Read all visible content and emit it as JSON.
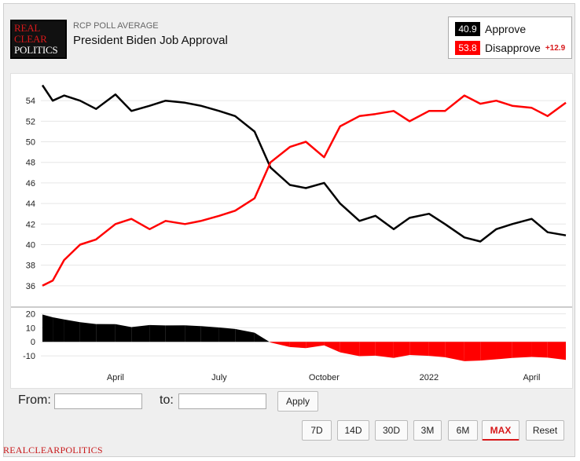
{
  "header": {
    "logo_lines": [
      "REAL",
      "CLEAR",
      "POLITICS"
    ],
    "kicker": "RCP POLL AVERAGE",
    "title": "President Biden Job Approval"
  },
  "legend": [
    {
      "value": "40.9",
      "name": "Approve",
      "color": "#000000"
    },
    {
      "value": "53.8",
      "name": "Disapprove",
      "color": "#ff0000",
      "spread": "+12.9"
    }
  ],
  "controls": {
    "from_label": "From:",
    "to_label": "to:",
    "apply_label": "Apply",
    "range_buttons": [
      "7D",
      "14D",
      "30D",
      "3M",
      "6M",
      "MAX",
      "Reset"
    ],
    "active_range": "MAX"
  },
  "footer": "REALCLEARPOLITICS",
  "chart_data": {
    "type": "line",
    "title": "President Biden Job Approval",
    "ylim": [
      34,
      56
    ],
    "yticks": [
      36,
      38,
      40,
      42,
      44,
      46,
      48,
      50,
      52,
      54
    ],
    "x": [
      "2021-01-27",
      "2021-02-05",
      "2021-02-15",
      "2021-03-01",
      "2021-03-15",
      "2021-04-01",
      "2021-04-15",
      "2021-05-01",
      "2021-05-15",
      "2021-06-01",
      "2021-06-15",
      "2021-07-01",
      "2021-07-15",
      "2021-08-01",
      "2021-08-15",
      "2021-09-01",
      "2021-09-15",
      "2021-10-01",
      "2021-10-15",
      "2021-11-01",
      "2021-11-15",
      "2021-12-01",
      "2021-12-15",
      "2022-01-01",
      "2022-01-15",
      "2022-02-01",
      "2022-02-15",
      "2022-03-01",
      "2022-03-15",
      "2022-04-01",
      "2022-04-15",
      "2022-05-01"
    ],
    "xtick_labels": [
      "April",
      "July",
      "October",
      "2022",
      "April"
    ],
    "xtick_dates": [
      "2021-04-01",
      "2021-07-01",
      "2021-10-01",
      "2022-01-01",
      "2022-04-01"
    ],
    "series": [
      {
        "name": "Approve",
        "color": "#000000",
        "values": [
          55.5,
          54.0,
          54.5,
          54.0,
          53.2,
          54.6,
          53.0,
          53.5,
          54.0,
          53.8,
          53.5,
          53.0,
          52.5,
          51.0,
          47.5,
          45.8,
          45.5,
          46.0,
          44.0,
          42.3,
          42.8,
          41.5,
          42.6,
          43.0,
          42.0,
          40.7,
          40.3,
          41.5,
          42.0,
          42.5,
          41.2,
          40.9
        ]
      },
      {
        "name": "Disapprove",
        "color": "#ff0000",
        "values": [
          36.0,
          36.5,
          38.5,
          40.0,
          40.5,
          42.0,
          42.5,
          41.5,
          42.3,
          42.0,
          42.3,
          42.8,
          43.3,
          44.5,
          48.0,
          49.5,
          50.0,
          48.5,
          51.5,
          52.5,
          52.7,
          53.0,
          52.0,
          53.0,
          53.0,
          54.5,
          53.7,
          54.0,
          53.5,
          53.3,
          52.5,
          53.8
        ]
      }
    ],
    "spread_panel": {
      "yticks": [
        20,
        10,
        0,
        -10
      ],
      "ylim": [
        -15,
        22
      ],
      "approve_color": "#000000",
      "disapprove_color": "#ff0000"
    }
  }
}
